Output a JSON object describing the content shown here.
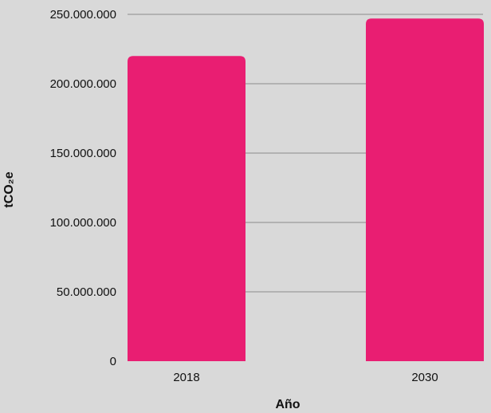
{
  "chart_data": {
    "type": "bar",
    "categories": [
      "2018",
      "2030"
    ],
    "values": [
      220000000,
      247000000
    ],
    "xlabel": "Año",
    "ylabel": "tCO₂e",
    "ylim": [
      0,
      250000000
    ],
    "yticks": [
      0,
      50000000,
      100000000,
      150000000,
      200000000,
      250000000
    ],
    "ytick_labels": [
      "0",
      "50.000.000",
      "100.000.000",
      "150.000.000",
      "200.000.000",
      "250.000.000"
    ],
    "grid": true,
    "legend": "none",
    "colors": {
      "bar": "#e91e72",
      "grid": "#8a8a8a",
      "background": "#d9d9d9"
    }
  }
}
